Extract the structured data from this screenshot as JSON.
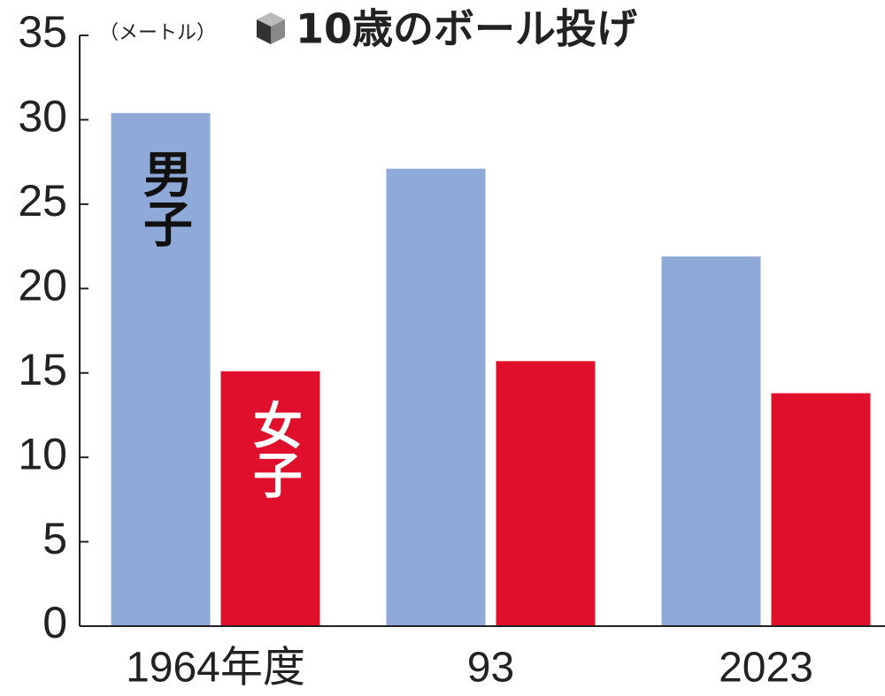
{
  "chart_data": {
    "type": "bar",
    "title": "10歳のボール投げ",
    "y_label": "（メートル）",
    "categories": [
      "1964年度",
      "93",
      "2023"
    ],
    "series": [
      {
        "name": "男子",
        "color": "#8faad8",
        "values": [
          30.4,
          27.1,
          21.9
        ]
      },
      {
        "name": "女子",
        "color": "#e0102c",
        "values": [
          15.1,
          15.7,
          13.8
        ]
      }
    ],
    "ylim": [
      0,
      35
    ],
    "yticks": [
      0,
      5,
      10,
      15,
      20,
      25,
      30,
      35
    ],
    "grid": false
  }
}
